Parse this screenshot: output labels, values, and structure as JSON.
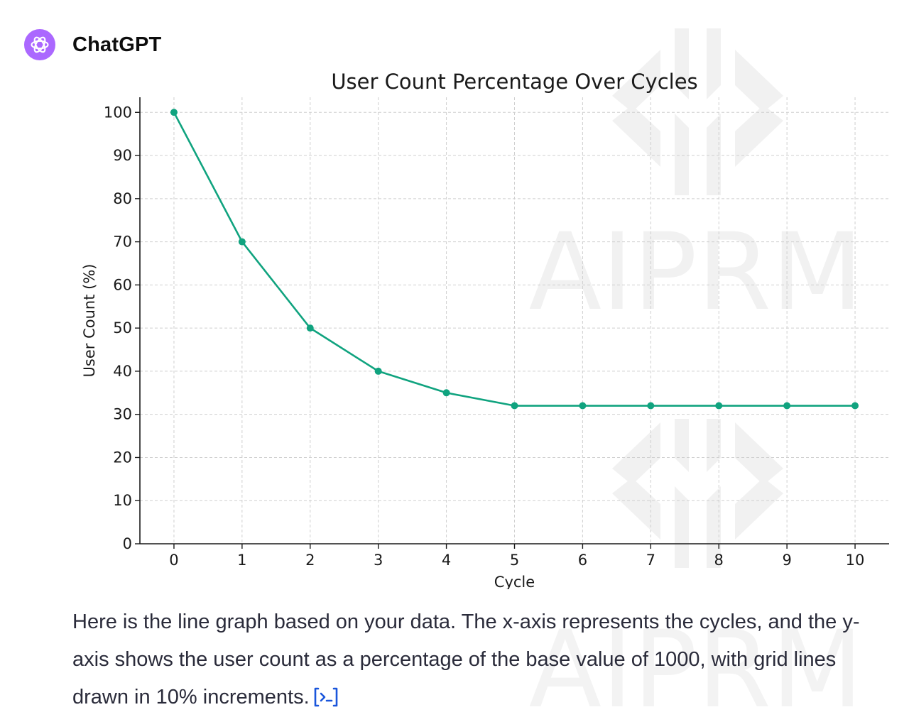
{
  "app": {
    "sender_name": "ChatGPT",
    "avatar_icon": "openai-logo-icon",
    "avatar_color": "#ab68ff"
  },
  "message": {
    "text": "Here is the line graph based on your data. The x-axis represents the cycles, and the y-axis shows the user count as a percentage of the base value of 1000, with grid lines drawn in 10% increments.",
    "code_link_icon": "code-interpreter-icon",
    "link_color": "#1a56db"
  },
  "watermark": {
    "text": "AIPRM",
    "color": "#f0f0f0"
  },
  "chart_data": {
    "type": "line",
    "title": "User Count Percentage Over Cycles",
    "xlabel": "Cycle",
    "ylabel": "User Count (%)",
    "x": [
      0,
      1,
      2,
      3,
      4,
      5,
      6,
      7,
      8,
      9,
      10
    ],
    "series": [
      {
        "values": [
          100,
          70,
          50,
          40,
          35,
          32,
          32,
          32,
          32,
          32,
          32
        ],
        "color": "#10a37f",
        "marker": "circle"
      }
    ],
    "xlim": [
      -0.5,
      10.5
    ],
    "ylim": [
      0,
      103.5
    ],
    "xticks": [
      0,
      1,
      2,
      3,
      4,
      5,
      6,
      7,
      8,
      9,
      10
    ],
    "yticks": [
      0,
      10,
      20,
      30,
      40,
      50,
      60,
      70,
      80,
      90,
      100
    ],
    "grid": true,
    "grid_style": "dashed"
  }
}
